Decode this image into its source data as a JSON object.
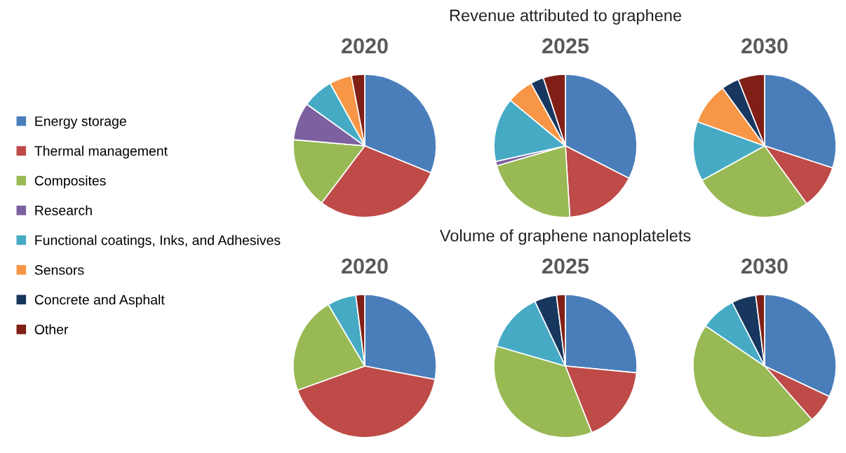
{
  "chart_data": [
    {
      "type": "pie",
      "title": "2020",
      "legend": "left",
      "categories": [
        "Energy storage",
        "Thermal management",
        "Composites",
        "Research",
        "Functional coatings, Inks, and Adhesives",
        "Sensors",
        "Concrete and Asphalt",
        "Other"
      ],
      "values": [
        31,
        29,
        16,
        8.5,
        7,
        5,
        null,
        3
      ],
      "colors": [
        "#4a7ebb",
        "#be4b48",
        "#98b954",
        "#7d60a0",
        "#46aac5",
        "#f79646",
        "#17375e",
        "#7f1f16"
      ]
    },
    {
      "type": "pie",
      "subtitle": "Revenue attributed to graphene",
      "title": "2025",
      "categories": [
        null,
        null,
        null,
        null,
        null,
        null,
        null,
        null
      ],
      "values": [
        32.5,
        16.5,
        21.5,
        1,
        14.5,
        6,
        3,
        5
      ],
      "colors": [
        "#4a7ebb",
        "#be4b48",
        "#98b954",
        "#7d60a0",
        "#46aac5",
        "#f79646",
        "#17375e",
        "#7f1f16"
      ]
    },
    {
      "type": "pie",
      "title": "2030",
      "categories": [
        null,
        null,
        null,
        null,
        null,
        null,
        null,
        null
      ],
      "values": [
        30,
        10,
        27,
        0,
        13.5,
        9.5,
        4,
        6
      ],
      "colors": [
        "#4a7ebb",
        "#be4b48",
        "#98b954",
        "#7d60a0",
        "#46aac5",
        "#f79646",
        "#17375e",
        "#7f1f16"
      ]
    },
    {
      "type": "pie",
      "title": "2020",
      "categories": [
        null,
        null,
        null,
        null,
        null,
        null,
        null,
        null
      ],
      "values": [
        28,
        41.5,
        22,
        0,
        6.5,
        0,
        0,
        2
      ],
      "colors": [
        "#4a7ebb",
        "#be4b48",
        "#98b954",
        "#7d60a0",
        "#46aac5",
        "#f79646",
        "#17375e",
        "#7f1f16"
      ]
    },
    {
      "type": "pie",
      "subtitle": "Volume of graphene nanoplatelets",
      "title": "2025",
      "categories": [
        null,
        null,
        null,
        null,
        null,
        null,
        null,
        null
      ],
      "values": [
        26.5,
        17.5,
        35.5,
        0,
        13.5,
        0,
        5,
        2
      ],
      "colors": [
        "#4a7ebb",
        "#be4b48",
        "#98b954",
        "#7d60a0",
        "#46aac5",
        "#f79646",
        "#17375e",
        "#7f1f16"
      ]
    },
    {
      "type": "pie",
      "title": "2030",
      "categories": [
        null,
        null,
        null,
        null,
        null,
        null,
        null,
        null
      ],
      "values": [
        32,
        6.5,
        46,
        0,
        8,
        0,
        5.5,
        2
      ],
      "colors": [
        "#4a7ebb",
        "#be4b48",
        "#98b954",
        "#7d60a0",
        "#46aac5",
        "#f79646",
        "#17375e",
        "#7f1f16"
      ]
    }
  ]
}
